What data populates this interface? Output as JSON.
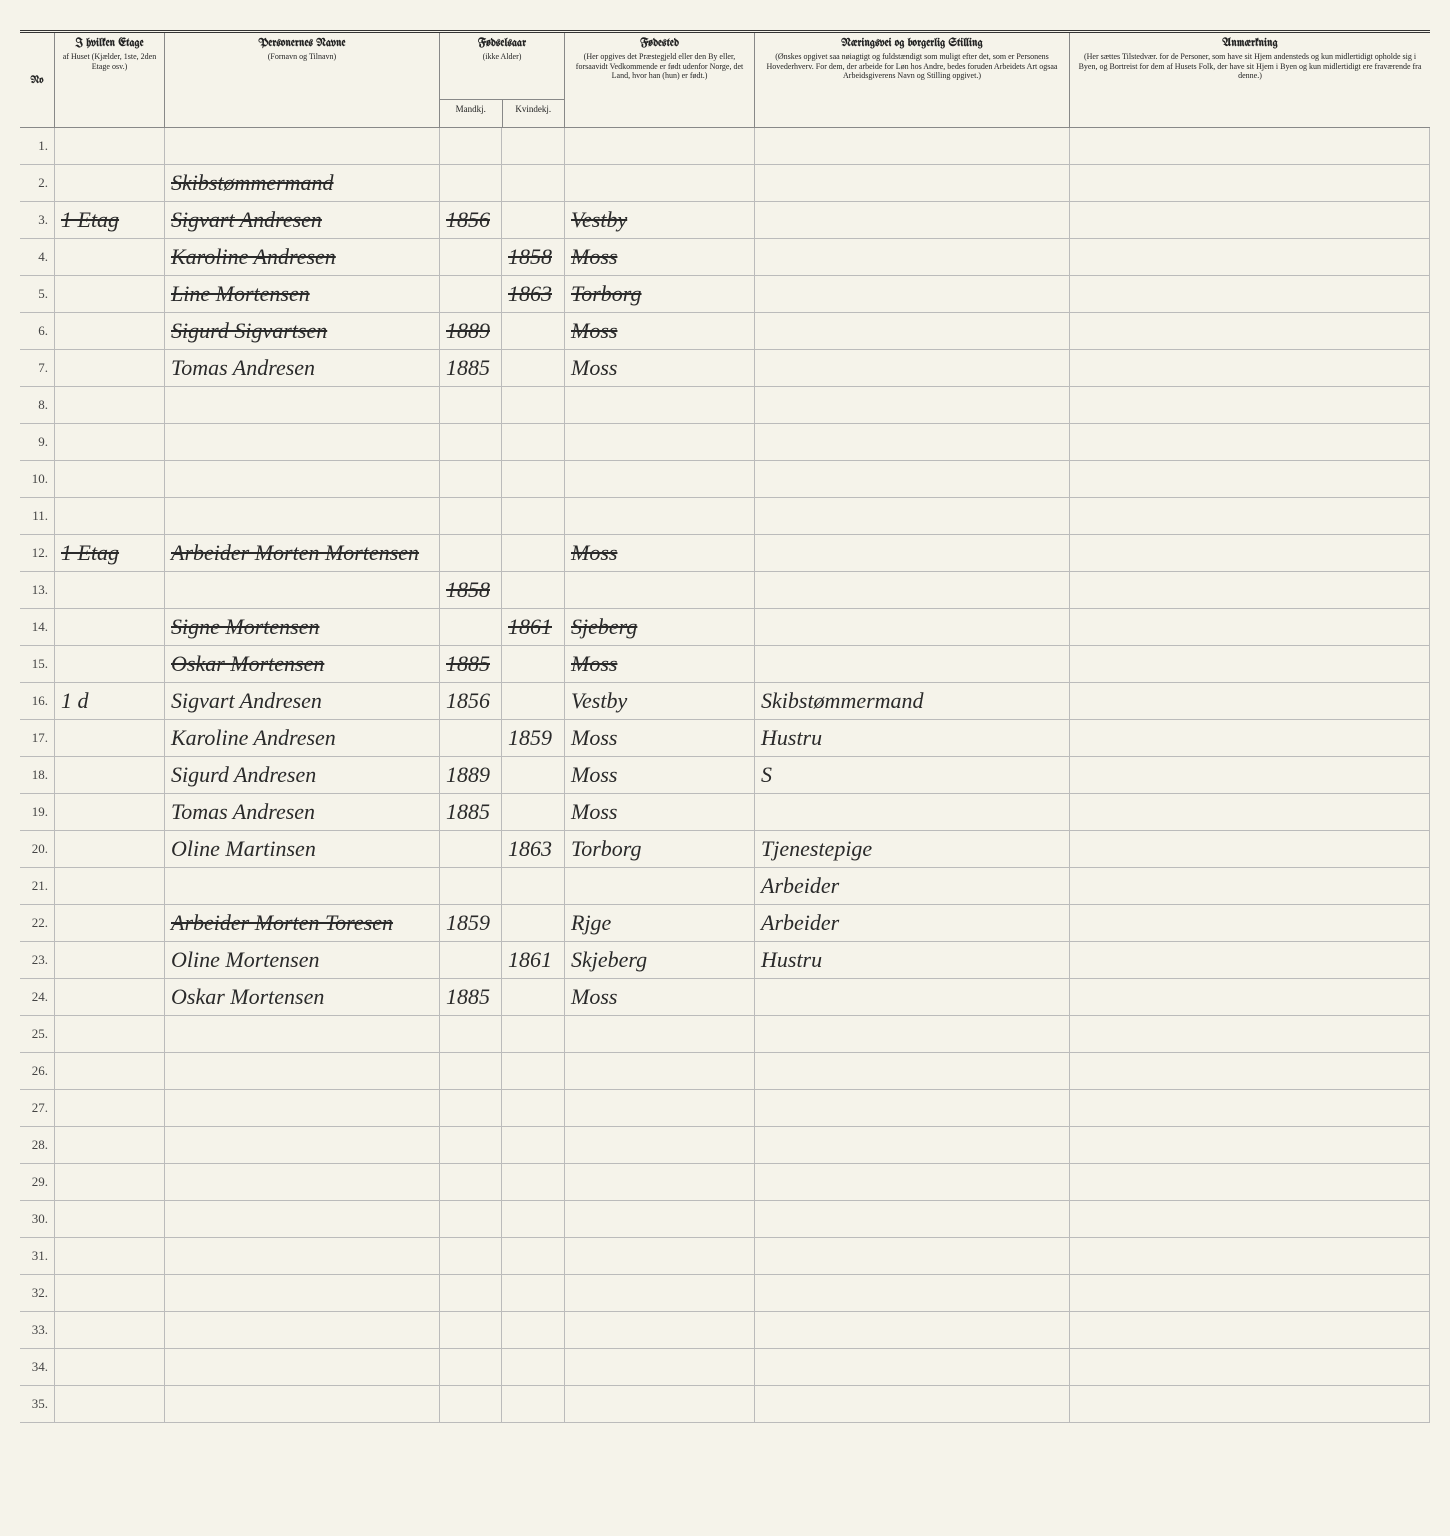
{
  "headers": {
    "no": "No",
    "etage_title": "I hvilken Etage",
    "etage_sub": "af Huset (Kjælder, 1ste, 2den Etage osv.)",
    "name_title": "Personernes Navne",
    "name_sub": "(Fornavn og Tilnavn)",
    "year_title": "Fødselsaar",
    "year_sub": "(ikke Alder)",
    "year_m": "Mandkj.",
    "year_f": "Kvindekj.",
    "birthplace_title": "Fødested",
    "birthplace_sub": "(Her opgives det Præstegjeld eller den By eller, forsaavidt Vedkommende er født udenfor Norge, det Land, hvor han (hun) er født.)",
    "occupation_title": "Næringsvei og borgerlig Stilling",
    "occupation_sub": "(Ønskes opgivet saa nøiagtigt og fuldstændigt som muligt efter det, som er Personens Hovederhverv. For dem, der arbeide for Løn hos Andre, bedes foruden Arbeidets Art ogsaa Arbeidsgiverens Navn og Stilling opgivet.)",
    "remarks_title": "Anmærkning",
    "remarks_sub": "(Her sættes Tilstedvær. for de Personer, som have sit Hjem andensteds og kun midlertidigt opholde sig i Byen, og Bortreist for dem af Husets Folk, der have sit Hjem i Byen og kun midlertidigt ere fraværende fra denne.)"
  },
  "rows": [
    {
      "no": "1."
    },
    {
      "no": "2.",
      "name": "Skibstømmermand",
      "struck": true
    },
    {
      "no": "3.",
      "etage": "1 Etag",
      "name": "Sigvart Andresen",
      "year_m": "1856",
      "birthplace": "Vestby",
      "struck": true
    },
    {
      "no": "4.",
      "name": "Karoline Andresen",
      "year_f": "1858",
      "birthplace": "Moss",
      "struck": true
    },
    {
      "no": "5.",
      "name": "Line Mortensen",
      "year_f": "1863",
      "birthplace": "Torborg",
      "struck": true
    },
    {
      "no": "6.",
      "name": "Sigurd Sigvartsen",
      "year_m": "1889",
      "birthplace": "Moss",
      "struck": true
    },
    {
      "no": "7.",
      "name": "Tomas Andresen",
      "year_m": "1885",
      "birthplace": "Moss"
    },
    {
      "no": "8."
    },
    {
      "no": "9."
    },
    {
      "no": "10."
    },
    {
      "no": "11."
    },
    {
      "no": "12.",
      "etage": "1 Etag",
      "name": "Arbeider Morten Mortensen",
      "birthplace": "Moss",
      "struck": true
    },
    {
      "no": "13.",
      "name": "",
      "year_m": "1858",
      "struck": true
    },
    {
      "no": "14.",
      "name": "Signe Mortensen",
      "year_f": "1861",
      "birthplace": "Sjeberg",
      "struck": true
    },
    {
      "no": "15.",
      "name": "Oskar Mortensen",
      "year_m": "1885",
      "birthplace": "Moss",
      "struck": true
    },
    {
      "no": "16.",
      "etage": "1 d",
      "name": "Sigvart Andresen",
      "year_m": "1856",
      "birthplace": "Vestby",
      "occupation": "Skibstømmermand"
    },
    {
      "no": "17.",
      "name": "Karoline Andresen",
      "year_f": "1859",
      "birthplace": "Moss",
      "occupation": "Hustru"
    },
    {
      "no": "18.",
      "name": "Sigurd Andresen",
      "year_m": "1889",
      "birthplace": "Moss",
      "occupation": "S"
    },
    {
      "no": "19.",
      "name": "Tomas Andresen",
      "year_m": "1885",
      "birthplace": "Moss"
    },
    {
      "no": "20.",
      "name": "Oline Martinsen",
      "year_f": "1863",
      "birthplace": "Torborg",
      "occupation": "Tjenestepige"
    },
    {
      "no": "21.",
      "occupation": "Arbeider"
    },
    {
      "no": "22.",
      "name": "Arbeider Morten Toresen",
      "year_m": "1859",
      "birthplace": "Rjge",
      "occupation": "Arbeider",
      "name_struck": true
    },
    {
      "no": "23.",
      "name": "Oline Mortensen",
      "year_f": "1861",
      "birthplace": "Skjeberg",
      "occupation": "Hustru"
    },
    {
      "no": "24.",
      "name": "Oskar Mortensen",
      "year_m": "1885",
      "birthplace": "Moss"
    },
    {
      "no": "25."
    },
    {
      "no": "26."
    },
    {
      "no": "27."
    },
    {
      "no": "28."
    },
    {
      "no": "29."
    },
    {
      "no": "30."
    },
    {
      "no": "31."
    },
    {
      "no": "32."
    },
    {
      "no": "33."
    },
    {
      "no": "34."
    },
    {
      "no": "35."
    }
  ]
}
